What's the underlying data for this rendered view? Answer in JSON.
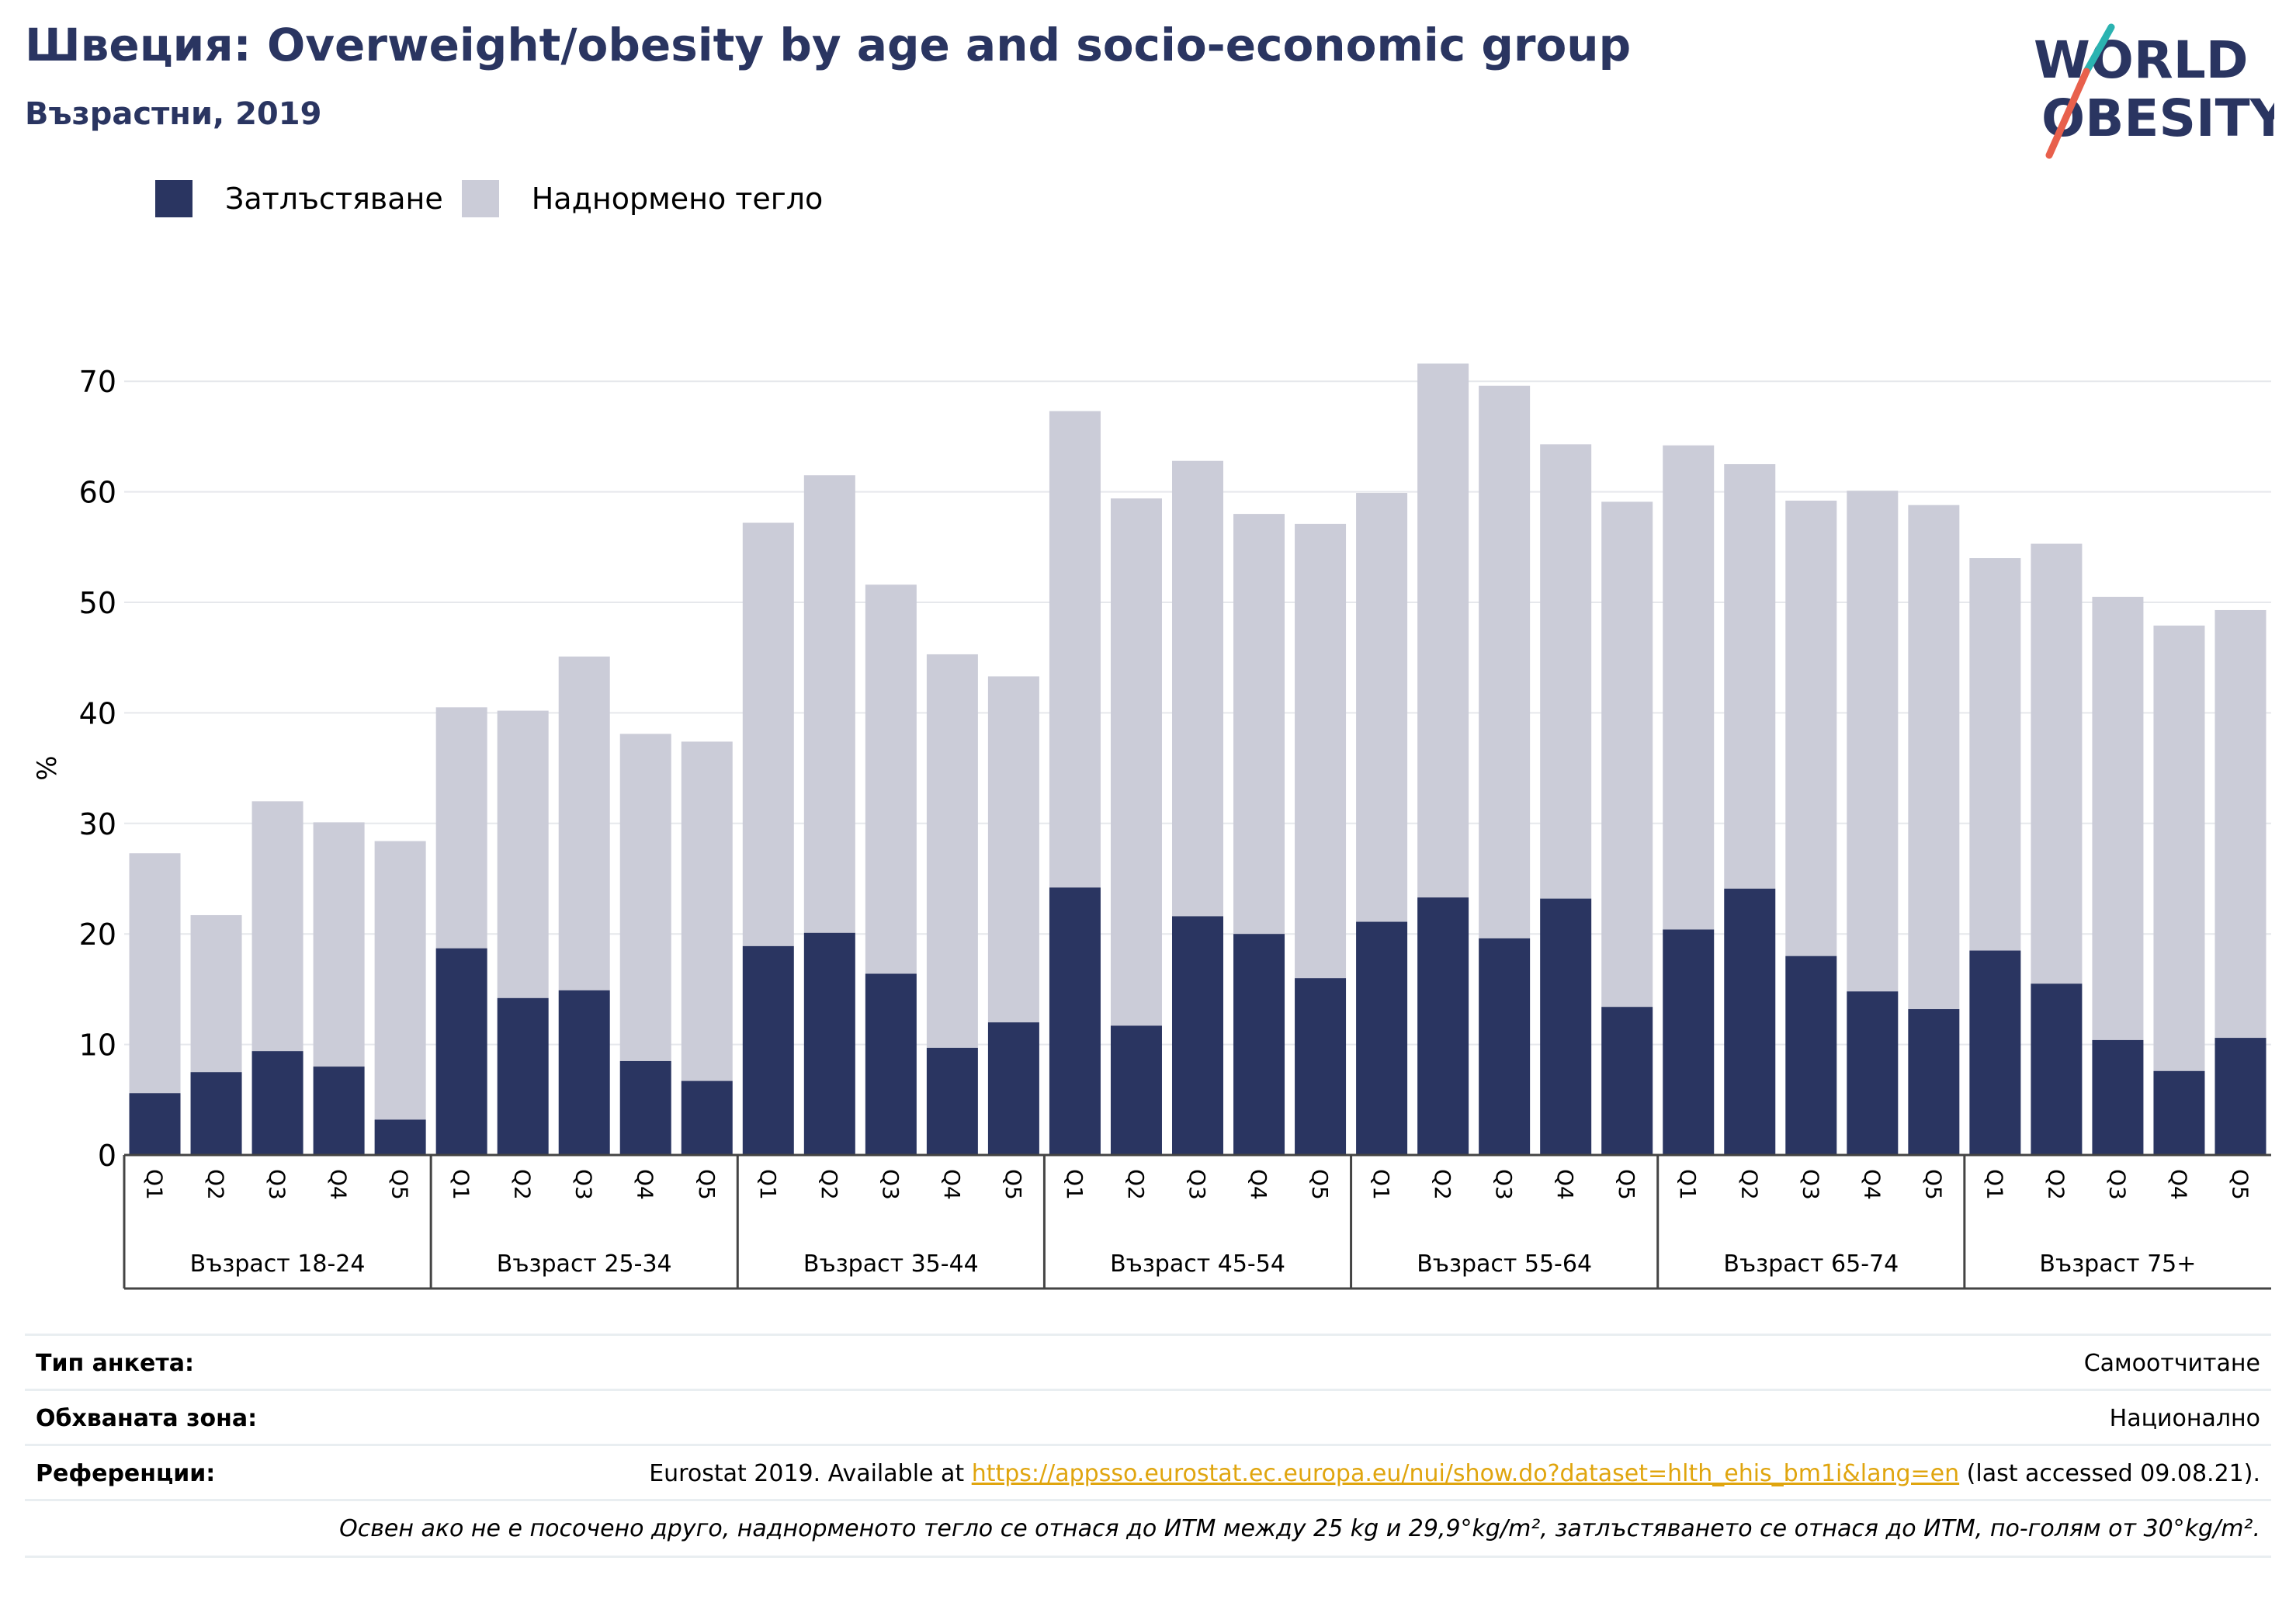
{
  "title": "Швеция: Overweight/obesity by age and socio-economic group",
  "subtitle": "Възрастни, 2019",
  "logo": {
    "line1": "WORLD",
    "line2": "OBESITY"
  },
  "legend": [
    {
      "label": "Затлъстяване",
      "color": "#2a3561"
    },
    {
      "label": "Наднормено тегло",
      "color": "#cbccd8"
    }
  ],
  "chart_data": {
    "type": "bar",
    "stacked": true,
    "ylabel": "%",
    "ylim": [
      0,
      70
    ],
    "yticks": [
      0,
      10,
      20,
      30,
      40,
      50,
      60,
      70
    ],
    "grid": true,
    "legend_position": "top-left",
    "groups": [
      "Възраст 18-24",
      "Възраст 25-34",
      "Възраст 35-44",
      "Възраст 45-54",
      "Възраст 55-64",
      "Възраст 65-74",
      "Възраст 75+"
    ],
    "quintiles": [
      "Q1",
      "Q2",
      "Q3",
      "Q4",
      "Q5"
    ],
    "series": [
      {
        "name": "Затлъстяване",
        "color": "#2a3561",
        "values": [
          5.6,
          7.5,
          9.4,
          8.0,
          3.2,
          18.7,
          14.2,
          14.9,
          8.5,
          6.7,
          18.9,
          20.1,
          16.4,
          9.7,
          12.0,
          24.2,
          11.7,
          21.6,
          20.0,
          16.0,
          21.1,
          23.3,
          19.6,
          23.2,
          13.4,
          20.4,
          24.1,
          18.0,
          14.8,
          13.2,
          18.5,
          15.5,
          10.4,
          7.6,
          10.6
        ]
      },
      {
        "name": "Наднормено тегло",
        "color": "#cbccd8",
        "values": [
          21.7,
          14.2,
          22.6,
          22.1,
          25.2,
          21.8,
          26.0,
          30.2,
          29.6,
          30.7,
          38.3,
          41.4,
          35.2,
          35.6,
          31.3,
          43.1,
          47.7,
          41.2,
          38.0,
          41.1,
          38.8,
          48.3,
          50.0,
          41.1,
          45.7,
          43.8,
          38.4,
          41.2,
          45.3,
          45.6,
          35.5,
          39.8,
          40.1,
          40.3,
          38.7
        ]
      }
    ]
  },
  "info": {
    "survey_label": "Тип анкета:",
    "survey_value": "Самоотчитане",
    "area_label": "Обхваната зона:",
    "area_value": "Национално",
    "ref_label": "Референции:",
    "ref_prefix": "Eurostat 2019. Available at ",
    "ref_link": "https://appsso.eurostat.ec.europa.eu/nui/show.do?dataset=hlth_ehis_bm1i&lang=en",
    "ref_suffix": " (last accessed 09.08.21).",
    "note": "Освен ако не е посочено друго, наднорменото тегло се отнася до ИТМ между 25 kg и 29,9°kg/m², затлъстяването се отнася до ИТМ, по-голям от 30°kg/m²."
  }
}
